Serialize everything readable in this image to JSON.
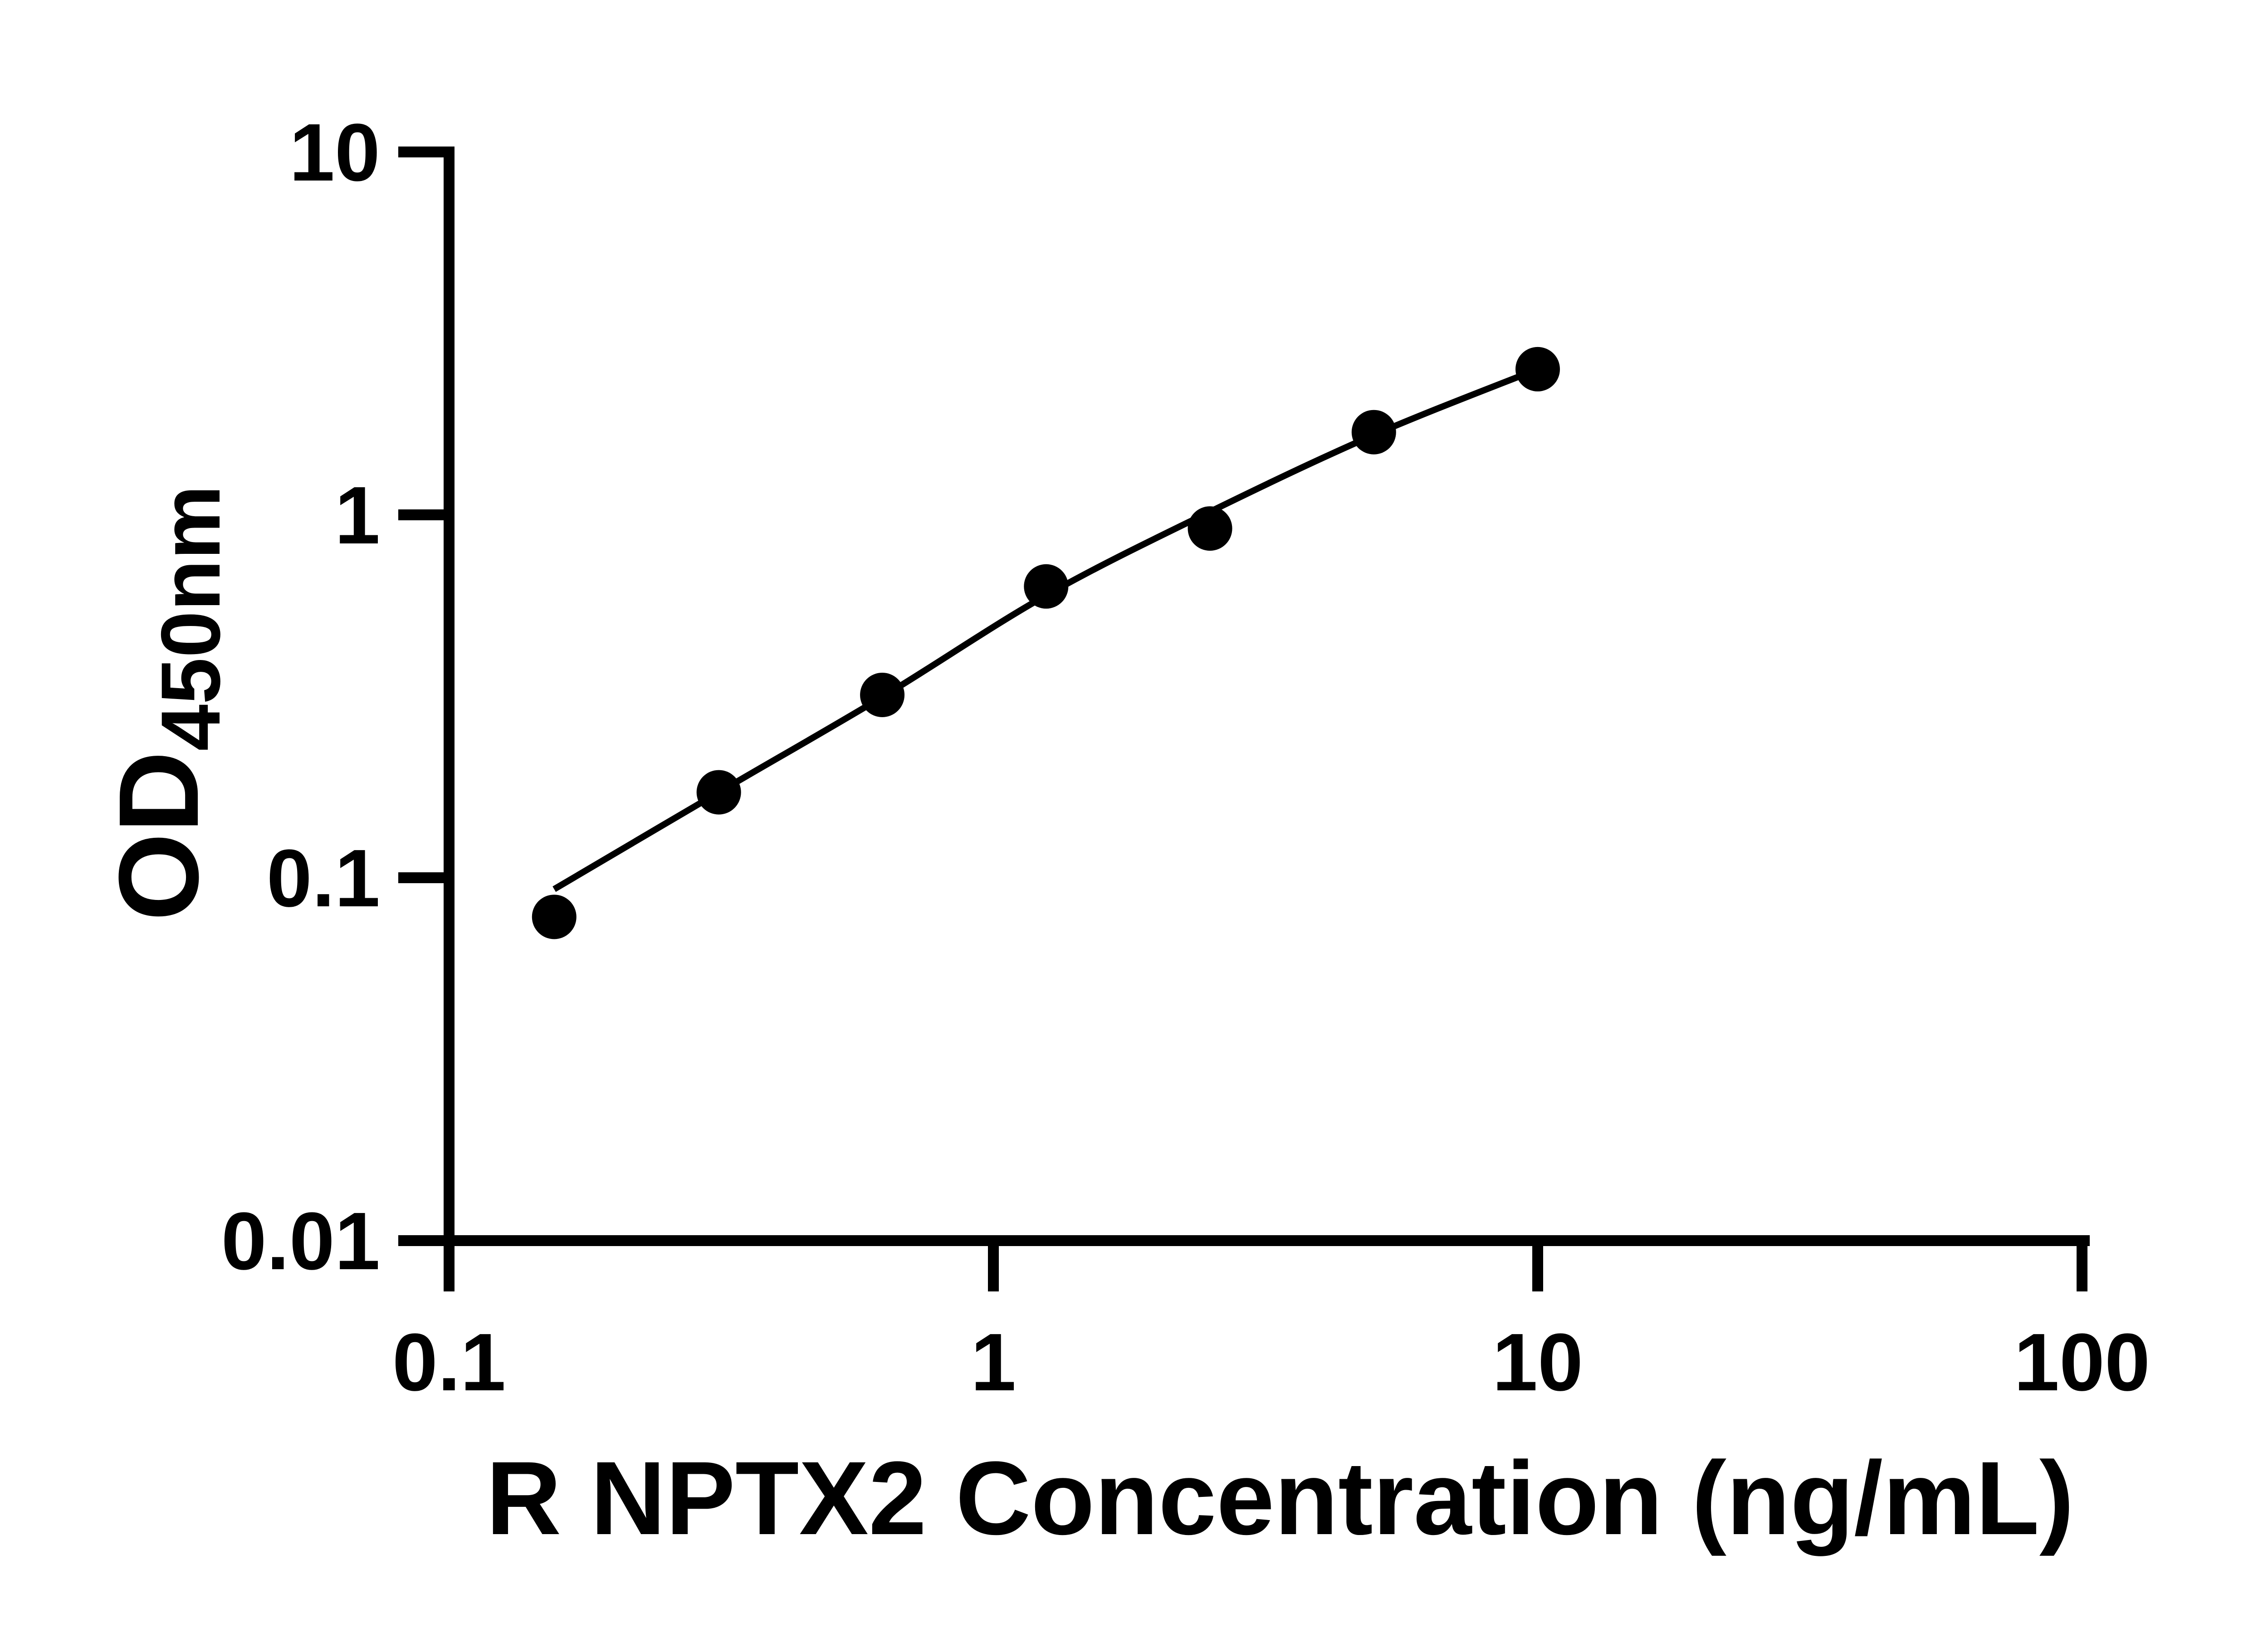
{
  "figure": {
    "background_color": "#ffffff",
    "ink_color": "#000000"
  },
  "chart_data": {
    "type": "scatter",
    "title": "",
    "xlabel": "R NPTX2 Concentration (ng/mL)",
    "ylabel_prefix": "OD",
    "ylabel_subscript": "450nm",
    "x_scale": "log",
    "y_scale": "log",
    "xlim": [
      0.1,
      100
    ],
    "ylim": [
      0.01,
      10
    ],
    "grid": false,
    "legend_position": "none",
    "x_ticks": [
      {
        "value": 0.1,
        "label": "0.1"
      },
      {
        "value": 1,
        "label": "1"
      },
      {
        "value": 10,
        "label": "10"
      },
      {
        "value": 100,
        "label": "100"
      }
    ],
    "y_ticks": [
      {
        "value": 10,
        "label": "10"
      },
      {
        "value": 1,
        "label": "1"
      },
      {
        "value": 0.1,
        "label": "0.1"
      },
      {
        "value": 0.01,
        "label": "0.01"
      }
    ],
    "series": [
      {
        "name": "standard-points",
        "render": "markers",
        "marker": "circle",
        "color": "#000000",
        "x": [
          0.156,
          0.313,
          0.625,
          1.25,
          2.5,
          5,
          10
        ],
        "y": [
          0.078,
          0.172,
          0.319,
          0.635,
          0.917,
          1.69,
          2.52
        ]
      },
      {
        "name": "fit-curve",
        "render": "line",
        "color": "#000000",
        "x": [
          0.156,
          0.313,
          0.625,
          1.25,
          2.5,
          5,
          10
        ],
        "y": [
          0.093,
          0.172,
          0.315,
          0.6,
          1.02,
          1.66,
          2.52
        ]
      }
    ]
  }
}
